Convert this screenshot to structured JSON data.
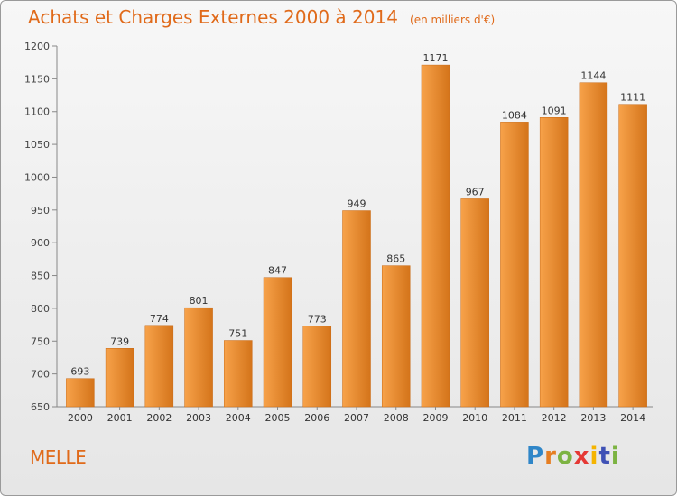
{
  "header": {
    "title": "Achats et Charges Externes 2000 à 2014",
    "unit": "(en milliers d'€)"
  },
  "footer": {
    "place": "MELLE",
    "logo_letters": [
      "P",
      "r",
      "o",
      "x",
      "i",
      "t",
      "i"
    ],
    "logo_colors": [
      "#2f86c8",
      "#e67e22",
      "#7cb342",
      "#e53935",
      "#f5b400",
      "#3f51b5",
      "#7cb342"
    ]
  },
  "colors": {
    "bar_light": "#f7a24a",
    "bar_dark": "#d4741a",
    "accent": "#e06a1a"
  },
  "chart_data": {
    "type": "bar",
    "title": "Achats et Charges Externes 2000 à 2014",
    "subtitle": "(en milliers d'€)",
    "categories": [
      "2000",
      "2001",
      "2002",
      "2003",
      "2004",
      "2005",
      "2006",
      "2007",
      "2008",
      "2009",
      "2010",
      "2011",
      "2012",
      "2013",
      "2014"
    ],
    "values": [
      693,
      739,
      774,
      801,
      751,
      847,
      773,
      949,
      865,
      1171,
      967,
      1084,
      1091,
      1144,
      1111
    ],
    "ylim": [
      650,
      1200
    ],
    "yticks": [
      650,
      700,
      750,
      800,
      850,
      900,
      950,
      1000,
      1050,
      1100,
      1150,
      1200
    ],
    "grid": false,
    "data_labels": true
  }
}
